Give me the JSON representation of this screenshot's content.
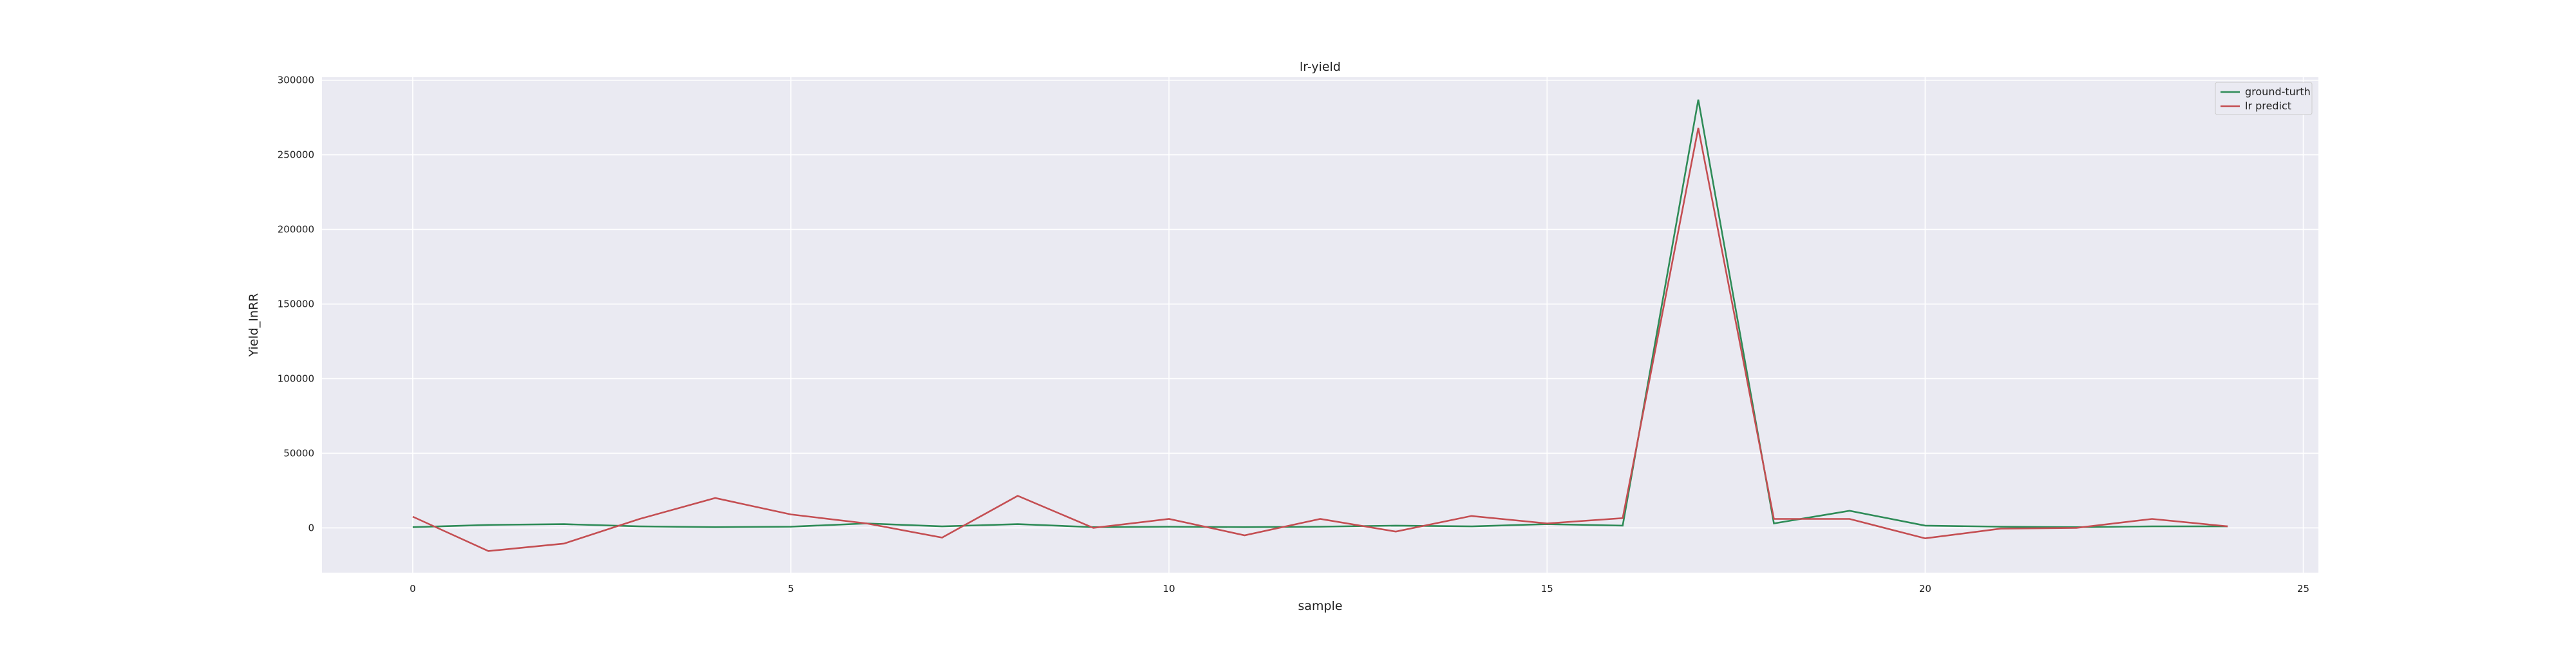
{
  "chart_data": {
    "type": "line",
    "title": "lr-yield",
    "xlabel": "sample",
    "ylabel": "Yield_InRR",
    "x": [
      0,
      1,
      2,
      3,
      4,
      5,
      6,
      7,
      8,
      9,
      10,
      11,
      12,
      13,
      14,
      15,
      16,
      17,
      18,
      19,
      20,
      21,
      22,
      23,
      24
    ],
    "series": [
      {
        "name": "ground-turth",
        "color": "#2e8b57",
        "values": [
          500,
          2000,
          2500,
          1000,
          500,
          800,
          3000,
          1000,
          2500,
          500,
          800,
          500,
          800,
          1500,
          1000,
          2500,
          1500,
          287000,
          3000,
          11500,
          1500,
          800,
          500,
          1000,
          1000
        ]
      },
      {
        "name": "lr predict",
        "color": "#c44e52",
        "values": [
          7500,
          -15500,
          -10500,
          6000,
          20000,
          9000,
          3000,
          -6500,
          21500,
          0,
          6000,
          -5000,
          6000,
          -2500,
          8000,
          3000,
          6500,
          268000,
          6000,
          6000,
          -7000,
          -500,
          0,
          6000,
          1000
        ]
      }
    ],
    "xlim": [
      -1.2,
      25.2
    ],
    "ylim": [
      -30000,
      302000
    ],
    "xticks": [
      0,
      5,
      10,
      15,
      20,
      25
    ],
    "yticks": [
      0,
      50000,
      100000,
      150000,
      200000,
      250000,
      300000
    ],
    "grid": true,
    "legend_position": "top-right"
  }
}
